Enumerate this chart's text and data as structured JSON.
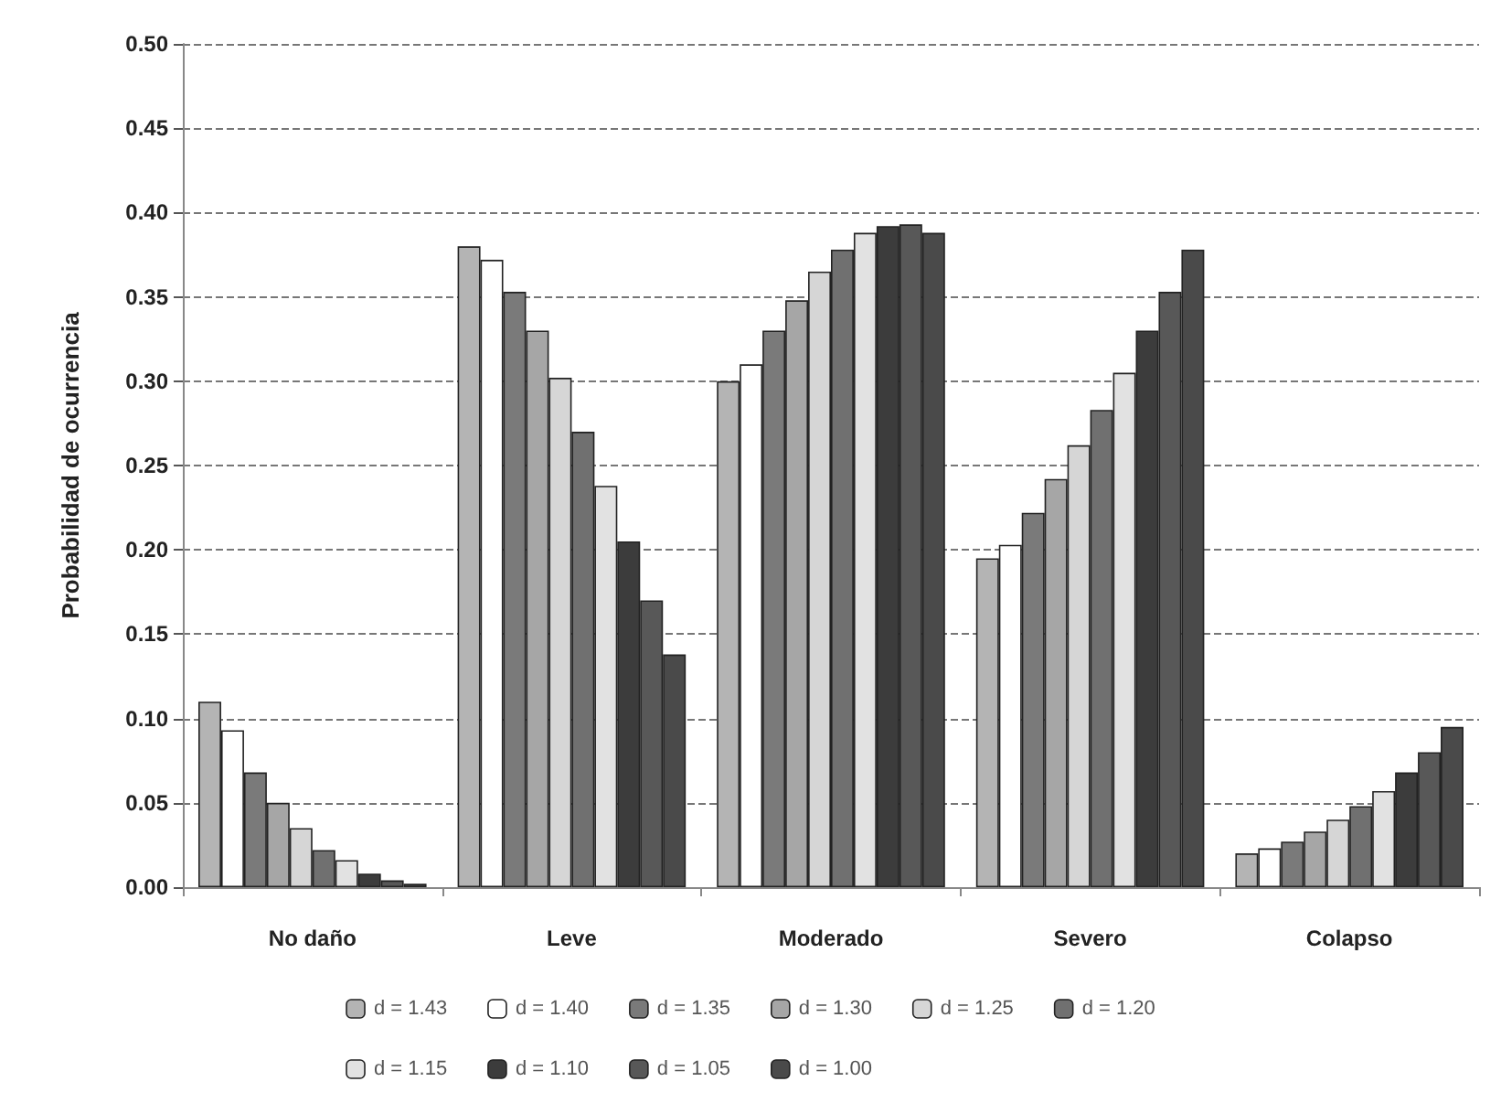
{
  "chart_data": {
    "type": "bar",
    "ylabel": "Probabilidad de ocurrencia",
    "categories": [
      "No daño",
      "Leve",
      "Moderado",
      "Severo",
      "Colapso"
    ],
    "series": [
      {
        "name": "d = 1.43",
        "color": "#b4b4b4",
        "values": [
          0.11,
          0.38,
          0.3,
          0.195,
          0.02
        ]
      },
      {
        "name": "d = 1.40",
        "color": "#ffffff",
        "values": [
          0.093,
          0.372,
          0.31,
          0.203,
          0.023
        ]
      },
      {
        "name": "d = 1.35",
        "color": "#7a7a7a",
        "values": [
          0.068,
          0.353,
          0.33,
          0.222,
          0.027
        ]
      },
      {
        "name": "d = 1.30",
        "color": "#a6a6a6",
        "values": [
          0.05,
          0.33,
          0.348,
          0.242,
          0.033
        ]
      },
      {
        "name": "d = 1.25",
        "color": "#d6d6d6",
        "values": [
          0.035,
          0.302,
          0.365,
          0.262,
          0.04
        ]
      },
      {
        "name": "d = 1.20",
        "color": "#707070",
        "values": [
          0.022,
          0.27,
          0.378,
          0.283,
          0.048
        ]
      },
      {
        "name": "d = 1.15",
        "color": "#e2e2e2",
        "values": [
          0.016,
          0.238,
          0.388,
          0.305,
          0.057
        ]
      },
      {
        "name": "d = 1.10",
        "color": "#3c3c3c",
        "values": [
          0.008,
          0.205,
          0.392,
          0.33,
          0.068
        ]
      },
      {
        "name": "d = 1.05",
        "color": "#585858",
        "values": [
          0.004,
          0.17,
          0.393,
          0.353,
          0.08
        ]
      },
      {
        "name": "d = 1.00",
        "color": "#4a4a4a",
        "values": [
          0.002,
          0.138,
          0.388,
          0.378,
          0.095
        ]
      }
    ],
    "ylim": [
      0,
      0.5
    ],
    "yticks": [
      {
        "value": 0,
        "label": "0.00"
      },
      0.05,
      {
        "value": 0.1,
        "label": "0.10"
      },
      0.15,
      {
        "value": 0.2,
        "label": "0.20"
      },
      0.25,
      {
        "value": 0.3,
        "label": "0.30"
      },
      0.35,
      {
        "value": 0.4,
        "label": "0.40"
      },
      0.45,
      {
        "value": 0.5,
        "label": "0.50"
      }
    ],
    "grid": "y",
    "legend": "bottom"
  }
}
